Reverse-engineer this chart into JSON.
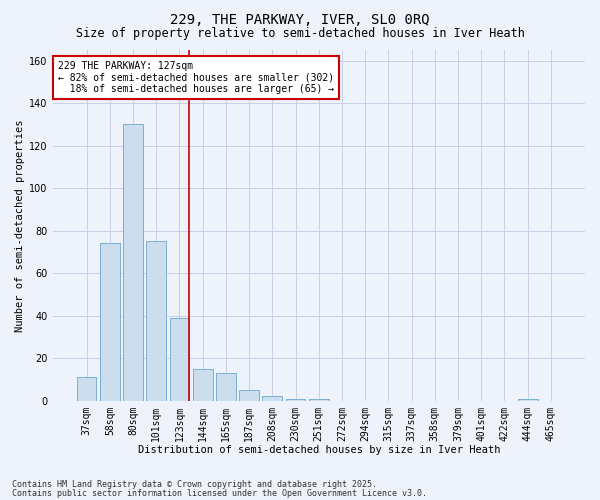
{
  "title1": "229, THE PARKWAY, IVER, SL0 0RQ",
  "title2": "Size of property relative to semi-detached houses in Iver Heath",
  "xlabel": "Distribution of semi-detached houses by size in Iver Heath",
  "ylabel": "Number of semi-detached properties",
  "bar_labels": [
    "37sqm",
    "58sqm",
    "80sqm",
    "101sqm",
    "123sqm",
    "144sqm",
    "165sqm",
    "187sqm",
    "208sqm",
    "230sqm",
    "251sqm",
    "272sqm",
    "294sqm",
    "315sqm",
    "337sqm",
    "358sqm",
    "379sqm",
    "401sqm",
    "422sqm",
    "444sqm",
    "465sqm"
  ],
  "bar_values": [
    11,
    74,
    130,
    75,
    39,
    15,
    13,
    5,
    2,
    1,
    1,
    0,
    0,
    0,
    0,
    0,
    0,
    0,
    0,
    1,
    0
  ],
  "bar_color": "#ccdded",
  "bar_edge_color": "#7aafd4",
  "vline_color": "#cc0000",
  "vline_x_index": 4,
  "annotation_text": "229 THE PARKWAY: 127sqm\n← 82% of semi-detached houses are smaller (302)\n  18% of semi-detached houses are larger (65) →",
  "annotation_box_color": "#ffffff",
  "annotation_box_edge": "#cc0000",
  "footer1": "Contains HM Land Registry data © Crown copyright and database right 2025.",
  "footer2": "Contains public sector information licensed under the Open Government Licence v3.0.",
  "ylim": [
    0,
    165
  ],
  "yticks": [
    0,
    20,
    40,
    60,
    80,
    100,
    120,
    140,
    160
  ],
  "bg_color": "#eef2fa",
  "grid_color": "#c8cfe8",
  "title1_fontsize": 10,
  "title2_fontsize": 8.5,
  "xlabel_fontsize": 7.5,
  "ylabel_fontsize": 7.5,
  "tick_fontsize": 7,
  "annot_fontsize": 7,
  "footer_fontsize": 6
}
